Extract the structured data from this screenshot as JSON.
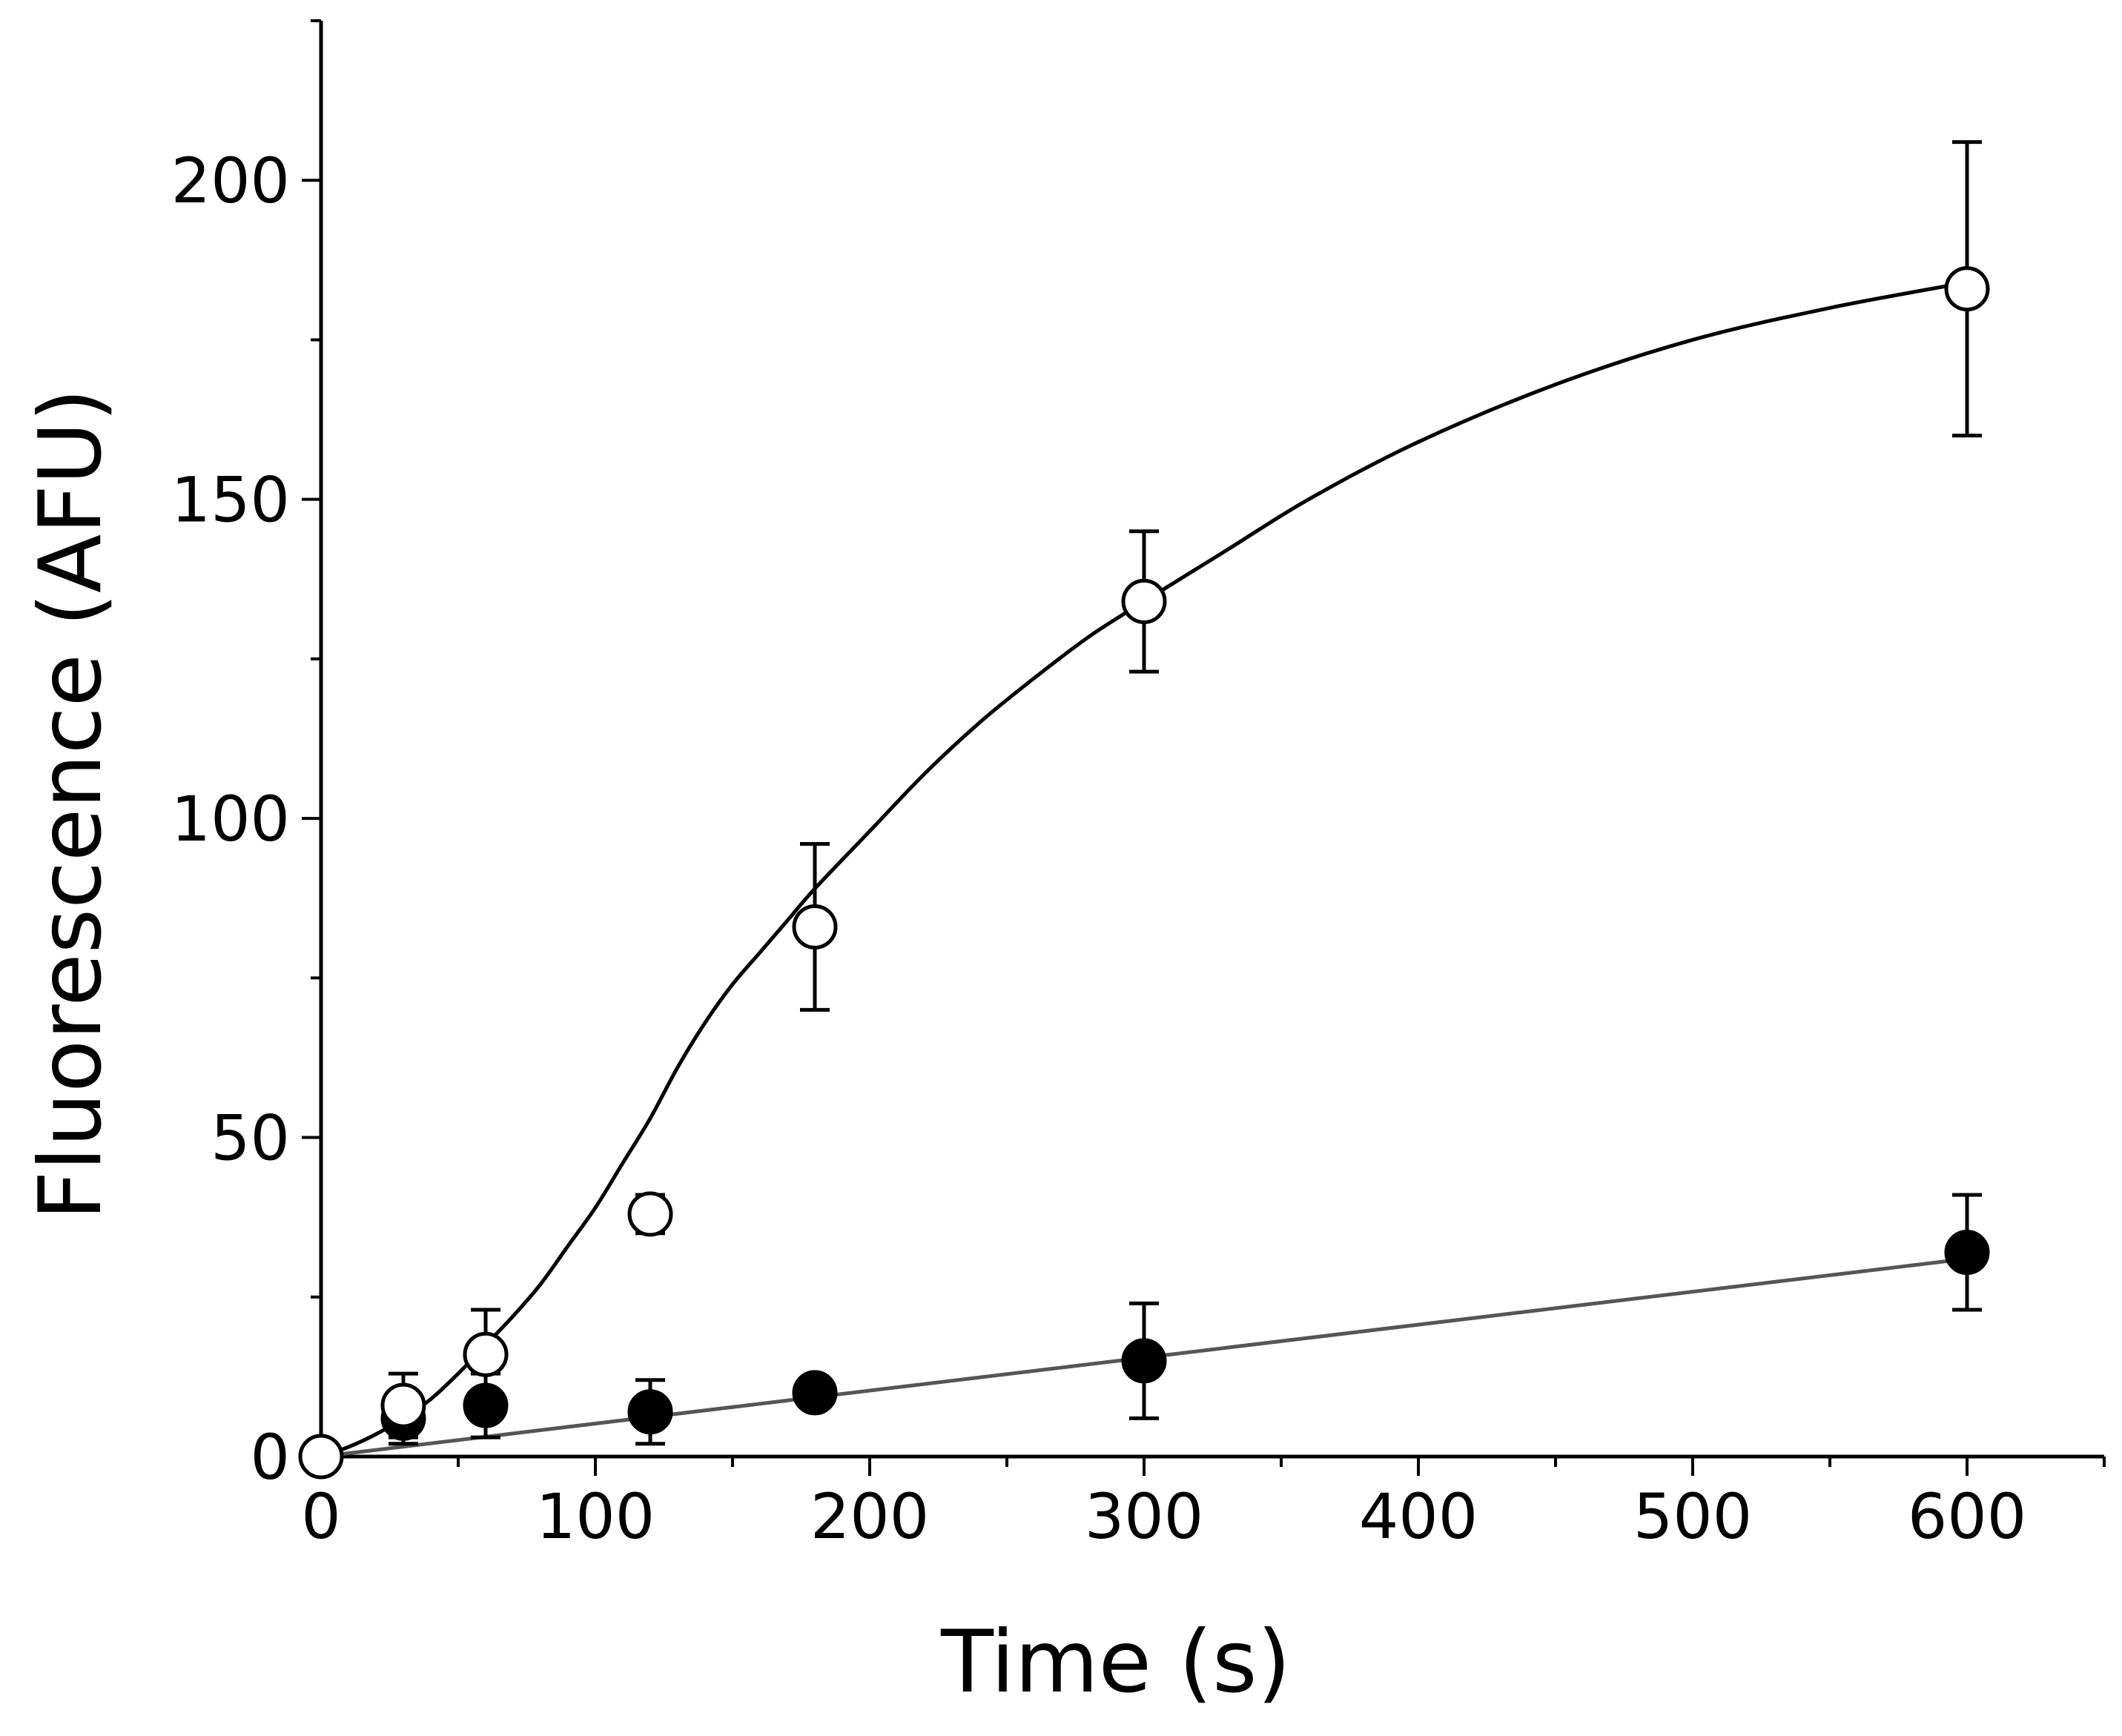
{
  "chart_data": {
    "type": "scatter",
    "title": "",
    "xlabel": "Time (s)",
    "ylabel": "Fluorescence (AFU)",
    "xlim": [
      0,
      650
    ],
    "ylim": [
      0,
      225
    ],
    "x_ticks_major": [
      0,
      100,
      200,
      300,
      400,
      500,
      600
    ],
    "x_tick_labels": [
      "0",
      "100",
      "200",
      "300",
      "400",
      "500",
      "600"
    ],
    "x_ticks_minor": [
      50,
      150,
      250,
      350,
      450,
      550,
      650
    ],
    "y_ticks_major": [
      0,
      50,
      100,
      150,
      200
    ],
    "y_tick_labels": [
      "0",
      "50",
      "100",
      "150",
      "200"
    ],
    "y_ticks_minor": [
      25,
      75,
      125,
      175,
      225
    ],
    "grid": false,
    "legend": null,
    "series": [
      {
        "name": "open circles",
        "marker": "open-circle",
        "color": "#000000",
        "x": [
          0,
          30,
          60,
          120,
          180,
          300,
          600
        ],
        "y": [
          0,
          8,
          16,
          38,
          83,
          134,
          183
        ],
        "error": [
          0,
          5,
          7,
          3,
          13,
          11,
          23
        ],
        "fit": {
          "color": "#000000",
          "x": [
            0,
            10,
            20,
            30,
            40,
            50,
            60,
            70,
            80,
            90,
            100,
            110,
            120,
            130,
            140,
            150,
            160,
            170,
            180,
            200,
            220,
            240,
            260,
            280,
            300,
            330,
            360,
            400,
            450,
            500,
            550,
            600
          ],
          "y": [
            0,
            1.5,
            3.5,
            6,
            9,
            13,
            17.5,
            22,
            27,
            33,
            39,
            46,
            53,
            61,
            68,
            74,
            79,
            84,
            89,
            98,
            107,
            115,
            122,
            128.5,
            134,
            142,
            150,
            159,
            168,
            175,
            180,
            184
          ]
        }
      },
      {
        "name": "filled circles",
        "marker": "filled-circle",
        "color": "#000000",
        "x": [
          30,
          60,
          120,
          180,
          300,
          600
        ],
        "y": [
          6,
          8,
          7,
          10,
          15,
          32
        ],
        "error": [
          4,
          5,
          5,
          0,
          9,
          9
        ],
        "fit": {
          "color": "#555555",
          "x": [
            0,
            600
          ],
          "y": [
            0,
            31
          ]
        }
      }
    ]
  }
}
